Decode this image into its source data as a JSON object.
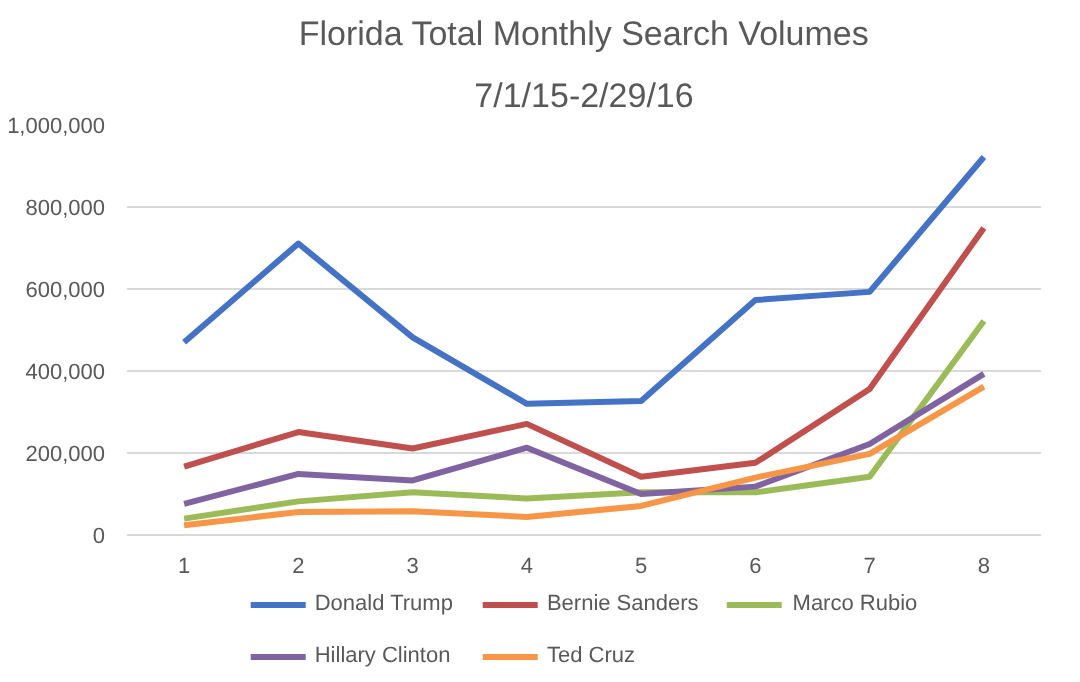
{
  "chart_data": {
    "type": "line",
    "title": "Florida Total Monthly Search Volumes",
    "subtitle": "7/1/15-2/29/16",
    "categories": [
      "1",
      "2",
      "3",
      "4",
      "5",
      "6",
      "7",
      "8"
    ],
    "ylim": [
      0,
      1000000
    ],
    "yticks": [
      {
        "value": 0,
        "label": "0"
      },
      {
        "value": 200000,
        "label": "200,000"
      },
      {
        "value": 400000,
        "label": "400,000"
      },
      {
        "value": 600000,
        "label": "600,000"
      },
      {
        "value": 800000,
        "label": "800,000"
      },
      {
        "value": 1000000,
        "label": "1,000,000"
      }
    ],
    "grid": "y",
    "legend": "bottom",
    "marker": "none",
    "line_style": "solid",
    "series": [
      {
        "name": "Donald Trump",
        "color": "#4472c4",
        "values": [
          470000,
          711000,
          482000,
          320000,
          327000,
          573000,
          593000,
          922000
        ]
      },
      {
        "name": "Bernie Sanders",
        "color": "#c0504d",
        "values": [
          167000,
          251000,
          211000,
          271000,
          142000,
          176000,
          356000,
          749000
        ]
      },
      {
        "name": "Marco Rubio",
        "color": "#9bbb59",
        "values": [
          40000,
          82000,
          104000,
          89000,
          104000,
          104000,
          142000,
          522000
        ]
      },
      {
        "name": "Hillary Clinton",
        "color": "#8064a2",
        "values": [
          76000,
          149000,
          133000,
          213000,
          100000,
          118000,
          222000,
          393000
        ]
      },
      {
        "name": "Ted Cruz",
        "color": "#f79646",
        "values": [
          24000,
          56000,
          58000,
          44000,
          71000,
          140000,
          198000,
          362000
        ]
      }
    ]
  }
}
